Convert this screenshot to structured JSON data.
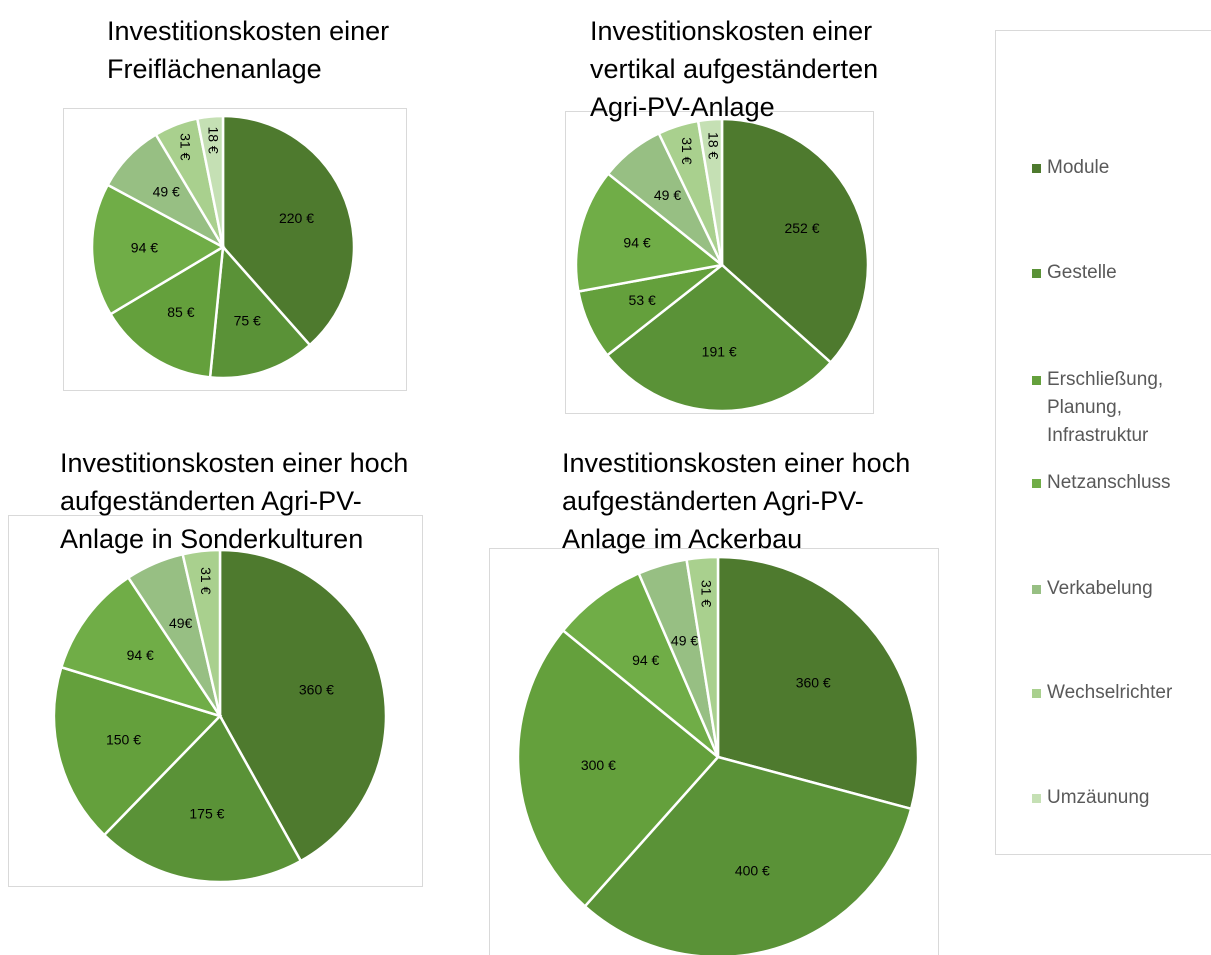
{
  "legend": {
    "labels": [
      "Module",
      "Gestelle",
      "Erschließung, Planung, Infrastruktur",
      "Netzanschluss",
      "Verkabelung",
      "Wechselrichter",
      "Umzäunung"
    ],
    "colors": [
      "#4e7a2e",
      "#5a9237",
      "#64a03c",
      "#70ad47",
      "#97bf83",
      "#a9d08e",
      "#c5e0b4"
    ]
  },
  "chart_data": [
    {
      "type": "pie",
      "title": [
        "Investitionskosten einer",
        "Freiflächenanlage"
      ],
      "values": [
        220,
        75,
        85,
        94,
        49,
        31,
        18
      ],
      "value_labels": [
        "220 €",
        "75 €",
        "85 €",
        "94 €",
        "49 €",
        "31 €",
        "18 €"
      ]
    },
    {
      "type": "pie",
      "title": [
        "Investitionskosten einer",
        "vertikal aufgeständerten",
        "Agri-PV-Anlage"
      ],
      "values": [
        252,
        191,
        53,
        94,
        49,
        31,
        18
      ],
      "value_labels": [
        "252 €",
        "191 €",
        "53 €",
        "94 €",
        "49 €",
        "31 €",
        "18 €"
      ]
    },
    {
      "type": "pie",
      "title": [
        "Investitionskosten einer hoch",
        "aufgeständerten Agri-PV-",
        "Anlage in Sonderkulturen"
      ],
      "values": [
        360,
        175,
        150,
        94,
        49,
        31,
        null
      ],
      "value_labels": [
        "360 €",
        "175 €",
        "150 €",
        "94 €",
        "49€",
        "31 €",
        null
      ]
    },
    {
      "type": "pie",
      "title": [
        "Investitionskosten einer hoch",
        "aufgeständerten Agri-PV-",
        "Anlage im Ackerbau"
      ],
      "values": [
        360,
        400,
        300,
        94,
        49,
        31,
        null
      ],
      "value_labels": [
        "360 €",
        "400 €",
        "300 €",
        "94 €",
        "49 €",
        "31 €",
        null
      ]
    }
  ]
}
